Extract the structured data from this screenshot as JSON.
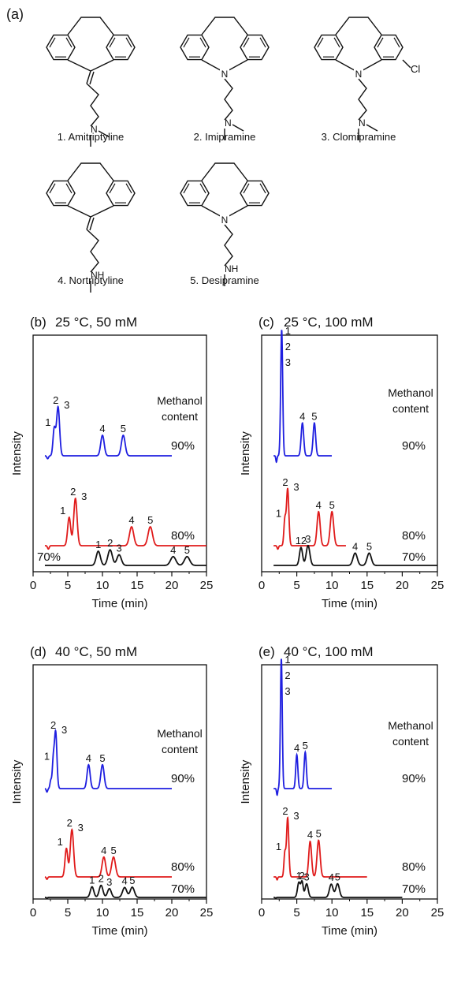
{
  "part_a": {
    "label": "(a)",
    "compounds": [
      {
        "name": "1. Amitriptyline",
        "core": "cyclic_alkene",
        "chain_end": "N",
        "cl": false
      },
      {
        "name": "2. Imipramine",
        "core": "azepine_N",
        "chain_end": "N",
        "cl": false
      },
      {
        "name": "3. Clomipramine",
        "core": "azepine_N",
        "chain_end": "N",
        "cl": true,
        "cl_label": "Cl"
      },
      {
        "name": "4. Nortriptyline",
        "core": "cyclic_alkene",
        "chain_end": "NH",
        "cl": false
      },
      {
        "name": "5. Desipramine",
        "core": "azepine_N",
        "chain_end": "NH",
        "cl": false
      }
    ],
    "atom_labels": {
      "N": "N",
      "NH": "NH"
    }
  },
  "common": {
    "ylabel": "Intensity",
    "xlabel": "Time (min)",
    "x_ticks": [
      0,
      5,
      10,
      15,
      20,
      25
    ],
    "methanol_label": [
      "Methanol",
      "content"
    ],
    "colors": {
      "90%": "#1f1fe0",
      "80%": "#e01b1b",
      "70%": "#111111"
    }
  },
  "chart_data": [
    {
      "type": "line",
      "panel": "(b)",
      "title": "25 °C, 50 mM",
      "xlim": [
        0,
        25
      ],
      "series": [
        {
          "name": "90%",
          "x_end": 20,
          "peaks": [
            {
              "t": 2.1,
              "h": 0.06,
              "w": 0.12,
              "neg": true
            },
            {
              "t": 3.05,
              "h": 0.55,
              "w": 0.18,
              "label": "1"
            },
            {
              "t": 3.6,
              "h": 1.0,
              "w": 0.22,
              "label": "2 3"
            },
            {
              "t": 10.0,
              "h": 0.42,
              "w": 0.25,
              "label": "4"
            },
            {
              "t": 13.0,
              "h": 0.42,
              "w": 0.27,
              "label": "5"
            }
          ]
        },
        {
          "name": "80%",
          "x_end": 25,
          "peaks": [
            {
              "t": 2.2,
              "h": 0.07,
              "w": 0.12,
              "neg": true
            },
            {
              "t": 5.2,
              "h": 0.6,
              "w": 0.22,
              "label": "1"
            },
            {
              "t": 6.1,
              "h": 1.0,
              "w": 0.24,
              "label": "2 3"
            },
            {
              "t": 14.2,
              "h": 0.4,
              "w": 0.3,
              "label": "4"
            },
            {
              "t": 16.9,
              "h": 0.4,
              "w": 0.32,
              "label": "5"
            }
          ]
        },
        {
          "name": "70%",
          "x_end": 25,
          "peaks": [
            {
              "t": 9.4,
              "h": 1.0,
              "w": 0.3,
              "label": "1"
            },
            {
              "t": 11.1,
              "h": 1.1,
              "w": 0.32,
              "label": "2"
            },
            {
              "t": 12.4,
              "h": 0.75,
              "w": 0.32,
              "label": "3"
            },
            {
              "t": 20.2,
              "h": 0.62,
              "w": 0.38,
              "label": "4"
            },
            {
              "t": 22.2,
              "h": 0.62,
              "w": 0.38,
              "label": "5"
            }
          ]
        }
      ]
    },
    {
      "type": "line",
      "panel": "(c)",
      "title": "25 °C, 100 mM",
      "xlim": [
        0,
        25
      ],
      "series": [
        {
          "name": "90%",
          "x_end": 10,
          "peaks": [
            {
              "t": 2.1,
              "h": 0.05,
              "w": 0.08,
              "neg": true
            },
            {
              "t": 2.85,
              "h": 1.0,
              "w": 0.14,
              "label": "1 2 3"
            },
            {
              "t": 5.8,
              "h": 0.26,
              "w": 0.18,
              "label": "4"
            },
            {
              "t": 7.5,
              "h": 0.26,
              "w": 0.18,
              "label": "5"
            }
          ]
        },
        {
          "name": "80%",
          "x_end": 12,
          "peaks": [
            {
              "t": 2.3,
              "h": 0.06,
              "w": 0.1,
              "neg": true
            },
            {
              "t": 3.3,
              "h": 0.45,
              "w": 0.14,
              "label": "1"
            },
            {
              "t": 3.7,
              "h": 1.0,
              "w": 0.17,
              "label": "2 3"
            },
            {
              "t": 8.1,
              "h": 0.6,
              "w": 0.22,
              "label": "4"
            },
            {
              "t": 10.0,
              "h": 0.6,
              "w": 0.24,
              "label": "5"
            }
          ]
        },
        {
          "name": "70%",
          "x_end": 25,
          "peaks": [
            {
              "t": 5.6,
              "h": 0.95,
              "w": 0.22,
              "label": "12"
            },
            {
              "t": 6.6,
              "h": 1.05,
              "w": 0.26,
              "label": "3"
            },
            {
              "t": 13.3,
              "h": 0.65,
              "w": 0.3,
              "label": "4"
            },
            {
              "t": 15.3,
              "h": 0.65,
              "w": 0.3,
              "label": "5"
            }
          ]
        }
      ]
    },
    {
      "type": "line",
      "panel": "(d)",
      "title": "40 °C, 50 mM",
      "xlim": [
        0,
        25
      ],
      "series": [
        {
          "name": "90%",
          "x_end": 20,
          "peaks": [
            {
              "t": 2.0,
              "h": 0.06,
              "w": 0.1,
              "neg": true
            },
            {
              "t": 2.55,
              "h": 0.14,
              "w": 0.12
            },
            {
              "t": 2.9,
              "h": 0.45,
              "w": 0.14,
              "label": "1"
            },
            {
              "t": 3.25,
              "h": 1.0,
              "w": 0.18,
              "label": "2 3"
            },
            {
              "t": 8.0,
              "h": 0.42,
              "w": 0.22,
              "label": "4"
            },
            {
              "t": 10.0,
              "h": 0.42,
              "w": 0.24,
              "label": "5"
            }
          ]
        },
        {
          "name": "80%",
          "x_end": 20,
          "peaks": [
            {
              "t": 2.0,
              "h": 0.05,
              "w": 0.1,
              "neg": true
            },
            {
              "t": 4.8,
              "h": 0.6,
              "w": 0.2,
              "label": "1"
            },
            {
              "t": 5.6,
              "h": 1.0,
              "w": 0.24,
              "label": "2 3"
            },
            {
              "t": 10.2,
              "h": 0.42,
              "w": 0.26,
              "label": "4"
            },
            {
              "t": 11.6,
              "h": 0.42,
              "w": 0.28,
              "label": "5"
            }
          ]
        },
        {
          "name": "70%",
          "x_end": 25,
          "peaks": [
            {
              "t": 2.0,
              "h": 0.04,
              "w": 0.1,
              "neg": true
            },
            {
              "t": 8.5,
              "h": 0.75,
              "w": 0.25,
              "label": "1"
            },
            {
              "t": 9.8,
              "h": 0.85,
              "w": 0.27,
              "label": "2"
            },
            {
              "t": 11.0,
              "h": 0.62,
              "w": 0.27,
              "label": "3"
            },
            {
              "t": 13.2,
              "h": 0.7,
              "w": 0.3,
              "label": "4"
            },
            {
              "t": 14.3,
              "h": 0.72,
              "w": 0.3,
              "label": "5"
            }
          ]
        }
      ]
    },
    {
      "type": "line",
      "panel": "(e)",
      "title": "40 °C, 100 mM",
      "xlim": [
        0,
        25
      ],
      "series": [
        {
          "name": "90%",
          "x_end": 10,
          "peaks": [
            {
              "t": 2.2,
              "h": 0.05,
              "w": 0.08,
              "neg": true
            },
            {
              "t": 2.8,
              "h": 1.0,
              "w": 0.13,
              "label": "1 2 3"
            },
            {
              "t": 5.0,
              "h": 0.26,
              "w": 0.15,
              "label": "4"
            },
            {
              "t": 6.2,
              "h": 0.28,
              "w": 0.16,
              "label": "5"
            }
          ]
        },
        {
          "name": "80%",
          "x_end": 15,
          "peaks": [
            {
              "t": 2.2,
              "h": 0.05,
              "w": 0.08,
              "neg": true
            },
            {
              "t": 3.3,
              "h": 0.4,
              "w": 0.13,
              "label": "1"
            },
            {
              "t": 3.7,
              "h": 1.0,
              "w": 0.16,
              "label": "2 3"
            },
            {
              "t": 6.9,
              "h": 0.6,
              "w": 0.2,
              "label": "4"
            },
            {
              "t": 8.1,
              "h": 0.62,
              "w": 0.22,
              "label": "5"
            }
          ]
        },
        {
          "name": "70%",
          "x_end": 20,
          "peaks": [
            {
              "t": 2.0,
              "h": 0.04,
              "w": 0.08,
              "neg": true
            },
            {
              "t": 5.3,
              "h": 0.8,
              "w": 0.2,
              "label": "1"
            },
            {
              "t": 5.75,
              "h": 0.8,
              "w": 0.16,
              "label": "2"
            },
            {
              "t": 6.4,
              "h": 0.72,
              "w": 0.22,
              "label": "3"
            },
            {
              "t": 9.9,
              "h": 0.7,
              "w": 0.26,
              "label": "4"
            },
            {
              "t": 10.8,
              "h": 0.72,
              "w": 0.26,
              "label": "5"
            }
          ]
        }
      ]
    }
  ]
}
